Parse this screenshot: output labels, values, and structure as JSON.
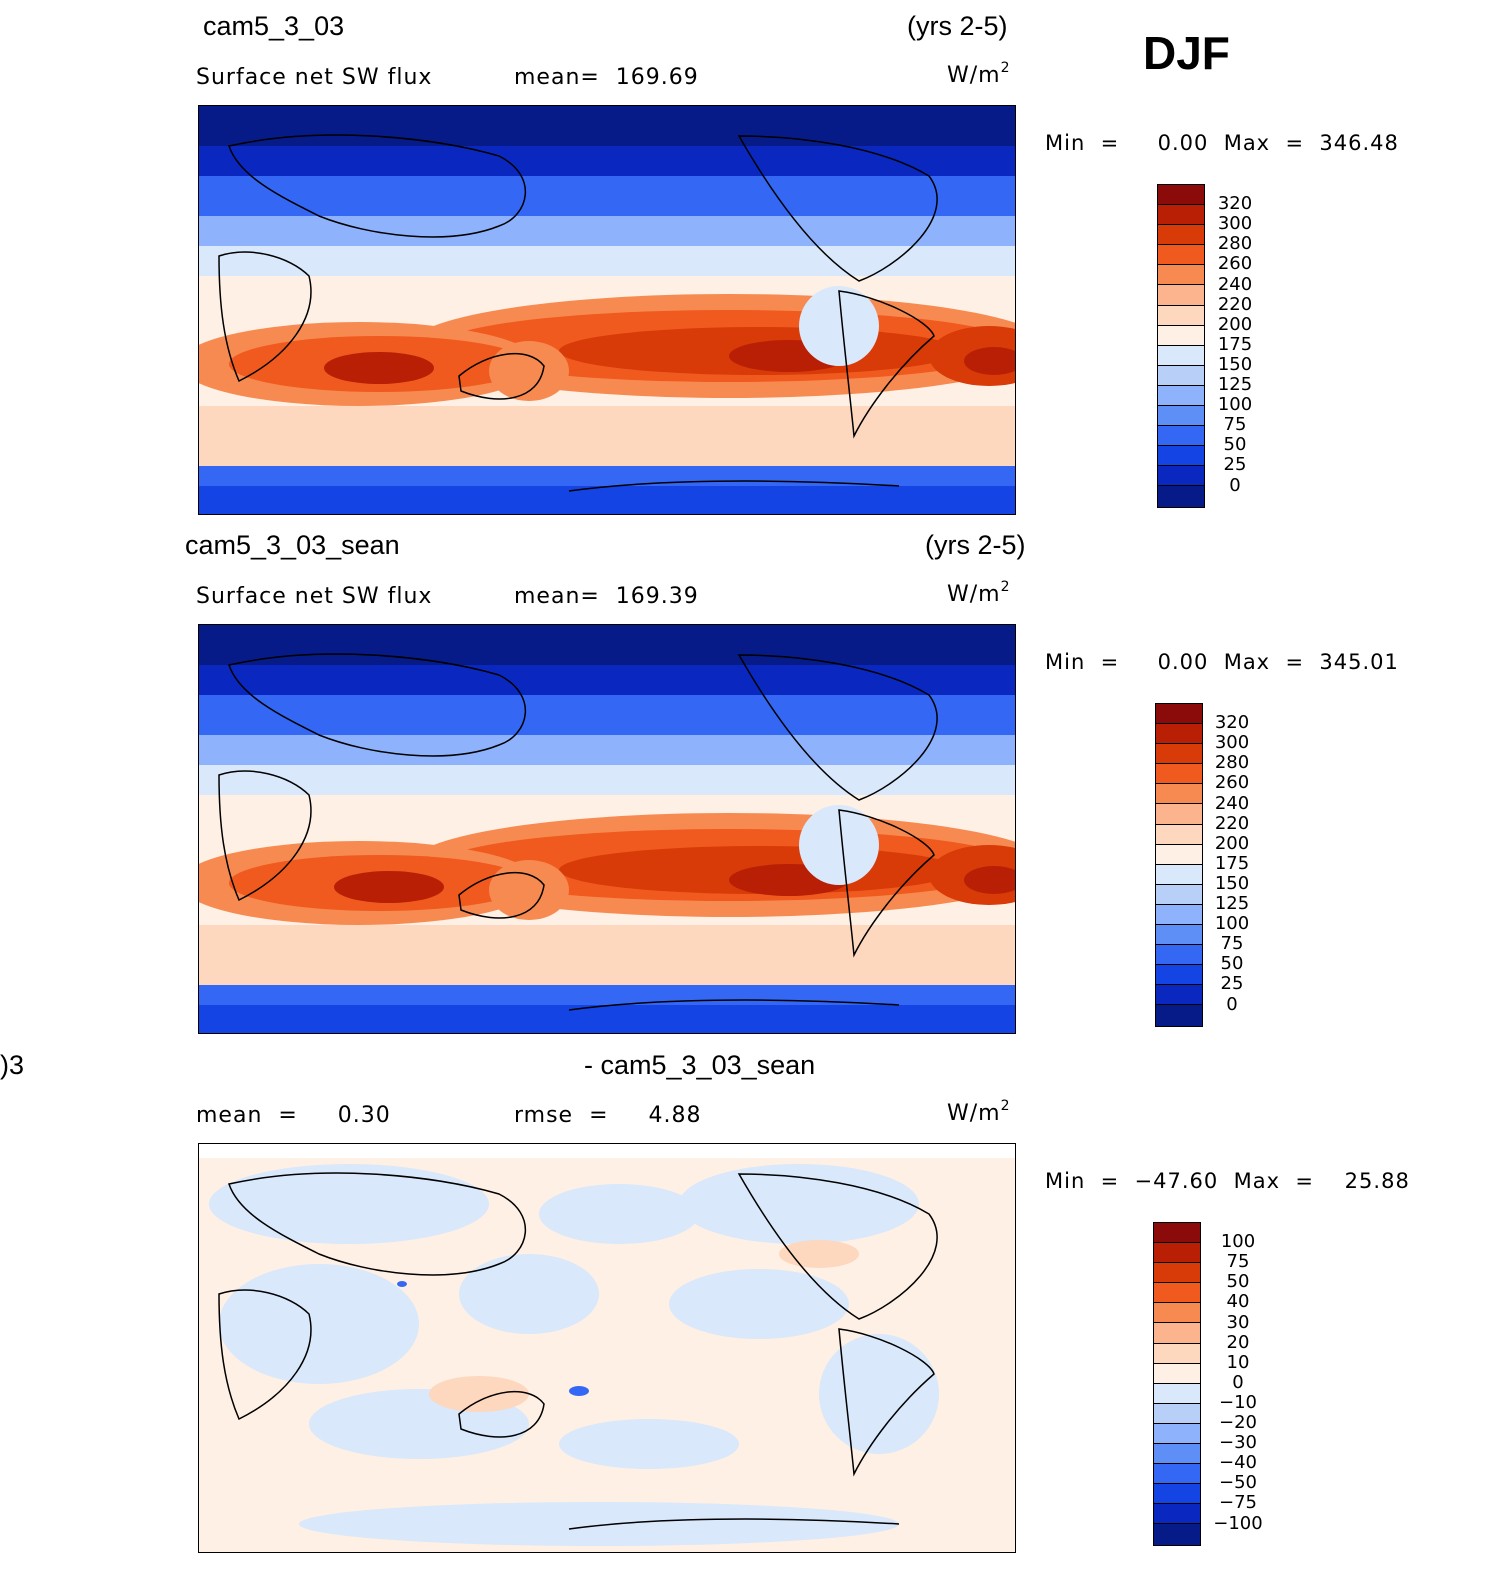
{
  "season": "DJF",
  "panels": [
    {
      "case": "cam5_3_03",
      "years": "(yrs 2-5)",
      "variable": "Surface net SW flux",
      "stat_text": "mean=  169.69",
      "units": "W/m",
      "units_sup": "2",
      "minmax": "Min  =     0.00  Max  =  346.48",
      "levels": [
        "320",
        "300",
        "280",
        "260",
        "240",
        "220",
        "200",
        "175",
        "150",
        "125",
        "100",
        "75",
        "50",
        "25",
        "0"
      ],
      "colors": [
        "#8b0a0a",
        "#b81f05",
        "#d83a08",
        "#f05a1e",
        "#f78a50",
        "#fbb48e",
        "#fdd7be",
        "#fef0e4",
        "#d9e8fa",
        "#b8d0f8",
        "#8eb2fb",
        "#5d8ff7",
        "#3468f4",
        "#1444e4",
        "#0a28c0",
        "#061a88"
      ]
    },
    {
      "case": "cam5_3_03_sean",
      "years": "(yrs 2-5)",
      "variable": "Surface net SW flux",
      "stat_text": "mean=  169.39",
      "units": "W/m",
      "units_sup": "2",
      "minmax": "Min  =     0.00  Max  =  345.01",
      "levels": [
        "320",
        "300",
        "280",
        "260",
        "240",
        "220",
        "200",
        "175",
        "150",
        "125",
        "100",
        "75",
        "50",
        "25",
        "0"
      ],
      "colors": [
        "#8b0a0a",
        "#b81f05",
        "#d83a08",
        "#f05a1e",
        "#f78a50",
        "#fbb48e",
        "#fdd7be",
        "#fef0e4",
        "#d9e8fa",
        "#b8d0f8",
        "#8eb2fb",
        "#5d8ff7",
        "#3468f4",
        "#1444e4",
        "#0a28c0",
        "#061a88"
      ]
    },
    {
      "case_left": ")3",
      "case": "- cam5_3_03_sean",
      "mean_text": "mean  =     0.30",
      "rmse_text": "rmse  =     4.88",
      "units": "W/m",
      "units_sup": "2",
      "minmax": "Min  =  −47.60  Max  =    25.88",
      "levels": [
        "100",
        "75",
        "50",
        "40",
        "30",
        "20",
        "10",
        "0",
        "−10",
        "−20",
        "−30",
        "−40",
        "−50",
        "−75",
        "−100"
      ],
      "colors": [
        "#8b0a0a",
        "#b81f05",
        "#d83a08",
        "#f05a1e",
        "#f78a50",
        "#fbb48e",
        "#fdd7be",
        "#fef0e4",
        "#d9e8fa",
        "#b8d0f8",
        "#8eb2fb",
        "#5d8ff7",
        "#3468f4",
        "#1444e4",
        "#0a28c0",
        "#061a88"
      ]
    }
  ]
}
